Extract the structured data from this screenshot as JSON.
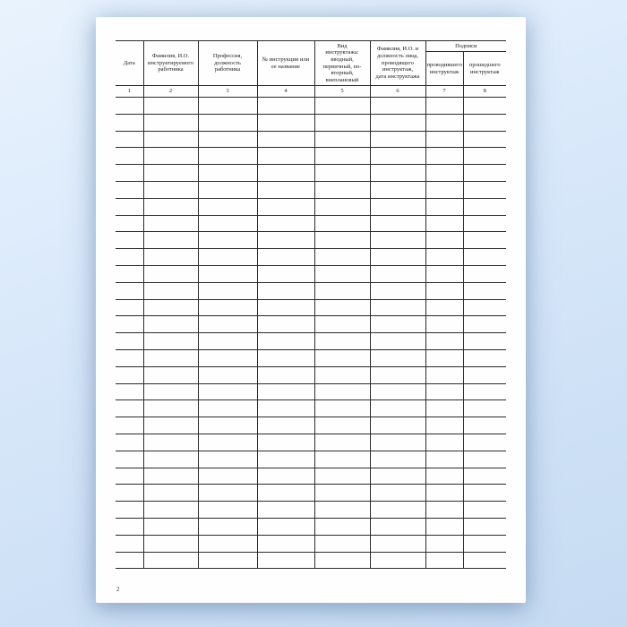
{
  "page": {
    "background_color": "#dbeafb",
    "paper_color": "#fefefe",
    "line_color": "#2b2b2b",
    "page_number": "2"
  },
  "table": {
    "group_header": {
      "label": "Подписи"
    },
    "columns": [
      {
        "n": "1",
        "header": "Дата"
      },
      {
        "n": "2",
        "header": "Фамилия, И.О.\nинструктируемого\nработника"
      },
      {
        "n": "3",
        "header": "Профессия,\nдолжность\nработника"
      },
      {
        "n": "4",
        "header": "№ инструкции или\nее название"
      },
      {
        "n": "5",
        "header": "Вид\nинструктажа:\nвводный,\nпервичный, по-\nвторный,\nвнеплановый"
      },
      {
        "n": "6",
        "header": "Фамилия, И.О. и\nдолжность лица,\nпроводящего\nинструктаж,\nдата инструктажа"
      },
      {
        "n": "7",
        "header": "проводившего\nинструктаж"
      },
      {
        "n": "8",
        "header": "прошедшего\nинструктаж"
      }
    ],
    "empty_row_count": 28
  }
}
